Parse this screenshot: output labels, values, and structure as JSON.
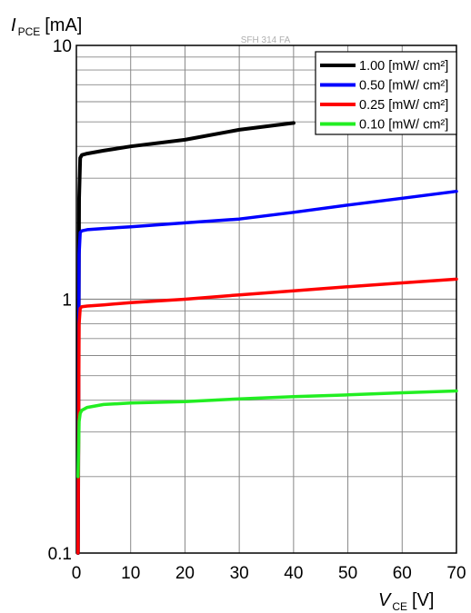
{
  "chart_data": {
    "type": "line",
    "title": "SFH 314 FA",
    "xlabel": {
      "symbol": "V",
      "subscript": "CE",
      "unit": "[V]"
    },
    "ylabel": {
      "symbol": "I",
      "subscript": "PCE",
      "unit": "[mA]"
    },
    "xlim": [
      0,
      70
    ],
    "ylim": [
      0.1,
      10
    ],
    "yscale": "log",
    "grid": true,
    "legend_position": "top-right",
    "x_ticks": [
      0,
      10,
      20,
      30,
      40,
      50,
      60,
      70
    ],
    "x_tick_labels": [
      "0",
      "10",
      "20",
      "30",
      "40",
      "50",
      "60",
      "70"
    ],
    "y_ticks": [
      0.1,
      1,
      10
    ],
    "y_tick_labels": [
      "0.1",
      "1",
      "10"
    ],
    "series": [
      {
        "name": "1.00 [mW/ cm²]",
        "color": "#000000",
        "x": [
          0.3,
          0.5,
          0.7,
          1,
          2,
          5,
          10,
          20,
          30,
          40
        ],
        "y": [
          0.1,
          2.5,
          3.6,
          3.7,
          3.75,
          3.85,
          4.0,
          4.25,
          4.65,
          4.95
        ]
      },
      {
        "name": "0.50 [mW/ cm²]",
        "color": "#0000ff",
        "x": [
          0.3,
          0.5,
          0.7,
          1,
          2,
          5,
          10,
          20,
          30,
          40,
          50,
          60,
          70
        ],
        "y": [
          0.1,
          1.5,
          1.83,
          1.86,
          1.88,
          1.9,
          1.93,
          2.0,
          2.07,
          2.2,
          2.35,
          2.5,
          2.66
        ]
      },
      {
        "name": "0.25 [mW/ cm²]",
        "color": "#ff0000",
        "x": [
          0.3,
          0.5,
          0.7,
          1,
          2,
          5,
          10,
          20,
          30,
          40,
          50,
          60,
          70
        ],
        "y": [
          0.1,
          0.8,
          0.92,
          0.935,
          0.94,
          0.95,
          0.97,
          1.0,
          1.04,
          1.08,
          1.12,
          1.16,
          1.2
        ]
      },
      {
        "name": "0.10 [mW/ cm²]",
        "color": "#22ee22",
        "x": [
          0.3,
          0.5,
          0.7,
          1,
          2,
          5,
          10,
          20,
          30,
          40,
          50,
          60,
          70
        ],
        "y": [
          0.2,
          0.33,
          0.355,
          0.365,
          0.375,
          0.385,
          0.39,
          0.395,
          0.405,
          0.413,
          0.42,
          0.428,
          0.435
        ]
      }
    ]
  }
}
